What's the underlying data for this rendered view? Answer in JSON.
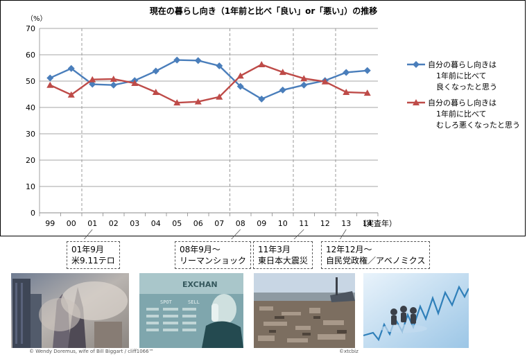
{
  "chart_data": {
    "type": "line",
    "title": "現在の暮らし向き（1年前と比べ「良い」or「悪い」）の推移",
    "ylabel": "（%）",
    "xlabel": "（実査年）",
    "categories": [
      "99",
      "00",
      "01",
      "02",
      "03",
      "04",
      "05",
      "06",
      "07",
      "08",
      "09",
      "10",
      "11",
      "12",
      "13",
      "14"
    ],
    "ylim": [
      0,
      70
    ],
    "yticks": [
      0,
      10,
      20,
      30,
      40,
      50,
      60,
      70
    ],
    "grid": true,
    "legend_position": "right",
    "series": [
      {
        "name": "自分の暮らし向きは\n1年前に比べて\n良くなったと思う",
        "legend_lines": [
          "自分の暮らし向きは",
          "1年前に比べて",
          "良くなったと思う"
        ],
        "color": "#4a7ebb",
        "marker": "diamond",
        "values": [
          51.2,
          54.8,
          48.8,
          48.5,
          50.2,
          53.8,
          58.0,
          57.8,
          55.8,
          48.0,
          43.2,
          46.6,
          48.5,
          50.2,
          53.3,
          54.0
        ]
      },
      {
        "name": "自分の暮らし向きは\n1年前に比べて\nむしろ悪くなったと思う",
        "legend_lines": [
          "自分の暮らし向きは",
          "1年前に比べて",
          "むしろ悪くなったと思う"
        ],
        "color": "#be4b48",
        "marker": "triangle",
        "values": [
          48.5,
          44.8,
          50.6,
          50.8,
          49.2,
          45.8,
          41.8,
          42.2,
          44.0,
          52.0,
          56.3,
          53.4,
          51.0,
          49.8,
          45.8,
          45.5
        ]
      }
    ],
    "events": [
      {
        "category": "01",
        "lines": [
          "01年9月",
          "米9.11テロ"
        ]
      },
      {
        "category": "08",
        "lines": [
          "08年9月～",
          "リーマンショック"
        ]
      },
      {
        "category": "11",
        "lines": [
          "11年3月",
          "東日本大震災"
        ]
      },
      {
        "category": "13",
        "lines": [
          "12年12月～",
          "自民党政権／アベノミクス"
        ]
      }
    ]
  },
  "photos": {
    "credit_1": "© Wendy Doremus, wife of Bill Biggart / cliff1066™",
    "credit_2": "©xtcbiz",
    "exchange_board_text": "EXCHAN",
    "board_words": [
      "SPOT",
      "SELL"
    ]
  }
}
